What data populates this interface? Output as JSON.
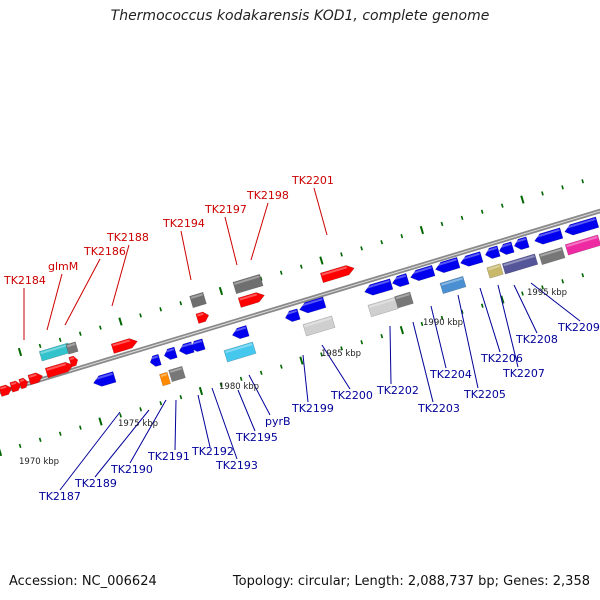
{
  "title": "Thermococcus kodakarensis KOD1, complete genome",
  "footer": {
    "accession": "Accession: NC_006624",
    "topology": "Topology: circular; Length: 2,088,737 bp; Genes: 2,358"
  },
  "colors": {
    "forward_label": "#cc0000",
    "reverse_label": "#000099",
    "forward_gene": "#ff0000",
    "reverse_gene": "#0000ee",
    "tick": "#006600",
    "backbone": "#888888"
  },
  "scale_labels": [
    {
      "text": "1970 kbp",
      "kbp": 1970
    },
    {
      "text": "1975 kbp",
      "kbp": 1975
    },
    {
      "text": "1980 kbp",
      "kbp": 1980
    },
    {
      "text": "1985 kbp",
      "kbp": 1985
    },
    {
      "text": "1990 kbp",
      "kbp": 1990
    },
    {
      "text": "1995 kbp",
      "kbp": 1995
    }
  ],
  "top_labels": [
    {
      "text": "TK2184",
      "color": "#cc0000"
    },
    {
      "text": "glmM",
      "color": "#cc0000"
    },
    {
      "text": "TK2186",
      "color": "#cc0000"
    },
    {
      "text": "TK2188",
      "color": "#cc0000"
    },
    {
      "text": "TK2194",
      "color": "#cc0000"
    },
    {
      "text": "TK2197",
      "color": "#cc0000"
    },
    {
      "text": "TK2198",
      "color": "#cc0000"
    },
    {
      "text": "TK2201",
      "color": "#cc0000"
    }
  ],
  "bottom_labels": [
    {
      "text": "TK2187"
    },
    {
      "text": "TK2189"
    },
    {
      "text": "TK2190"
    },
    {
      "text": "TK2191"
    },
    {
      "text": "TK2192"
    },
    {
      "text": "TK2193"
    },
    {
      "text": "TK2195"
    },
    {
      "text": "pyrB"
    },
    {
      "text": "TK2199"
    },
    {
      "text": "TK2200"
    },
    {
      "text": "TK2202"
    },
    {
      "text": "TK2203"
    },
    {
      "text": "TK2204"
    },
    {
      "text": "TK2205"
    },
    {
      "text": "TK2206"
    },
    {
      "text": "TK2207"
    },
    {
      "text": "TK2208"
    },
    {
      "text": "TK2209"
    }
  ]
}
